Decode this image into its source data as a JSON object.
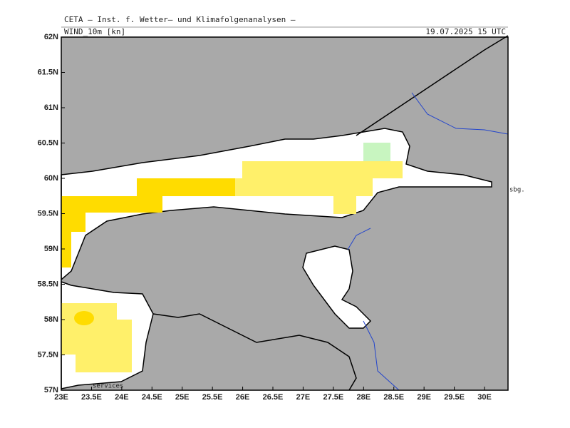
{
  "header": {
    "title": "CETA – Inst. f. Wetter– und Klimafolgenanalysen –",
    "field": "WIND_10m [kn]",
    "valid_time": "19.07.2025 15 UTC"
  },
  "map": {
    "lon_ticks": [
      {
        "value": 23,
        "label": "23E"
      },
      {
        "value": 23.5,
        "label": "23.5E"
      },
      {
        "value": 24,
        "label": "24E"
      },
      {
        "value": 24.5,
        "label": "24.5E"
      },
      {
        "value": 25,
        "label": "25E"
      },
      {
        "value": 25.5,
        "label": "25.5E"
      },
      {
        "value": 26,
        "label": "26E"
      },
      {
        "value": 26.5,
        "label": "26.5E"
      },
      {
        "value": 27,
        "label": "27E"
      },
      {
        "value": 27.5,
        "label": "27.5E"
      },
      {
        "value": 28,
        "label": "28E"
      },
      {
        "value": 28.5,
        "label": "28.5E"
      },
      {
        "value": 29,
        "label": "29E"
      },
      {
        "value": 29.5,
        "label": "29.5E"
      },
      {
        "value": 30,
        "label": "30E"
      }
    ],
    "lat_ticks": [
      {
        "value": 57,
        "label": "57N"
      },
      {
        "value": 57.5,
        "label": "57.5N"
      },
      {
        "value": 58,
        "label": "58N"
      },
      {
        "value": 58.5,
        "label": "58.5N"
      },
      {
        "value": 59,
        "label": "59N"
      },
      {
        "value": 59.5,
        "label": "59.5N"
      },
      {
        "value": 60,
        "label": "60N"
      },
      {
        "value": 60.5,
        "label": "60.5N"
      },
      {
        "value": 61,
        "label": "61N"
      },
      {
        "value": 61.5,
        "label": "61.5N"
      },
      {
        "value": 62,
        "label": "62N"
      }
    ],
    "station_label": "sbg.",
    "credit": "services"
  }
}
